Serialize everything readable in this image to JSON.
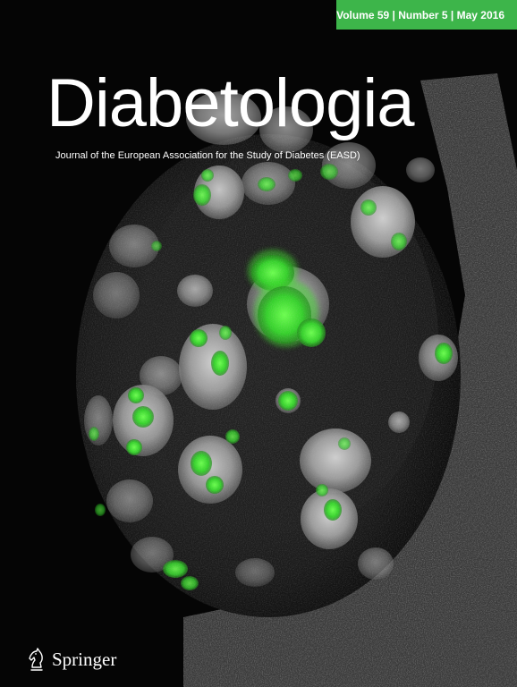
{
  "cover": {
    "issue_banner": "Volume 59 | Number 5 | May 2016",
    "journal_title": "Diabetologia",
    "journal_subtitle": "Journal of the European Association for the Study of Diabetes (EASD)",
    "publisher": "Springer",
    "publisher_icon": "chess-knight-icon",
    "colors": {
      "banner": "#3db54a",
      "background": "#050505",
      "fluorescent_green": "#3ce02a",
      "tissue_gray": "#9a9a9a"
    }
  }
}
